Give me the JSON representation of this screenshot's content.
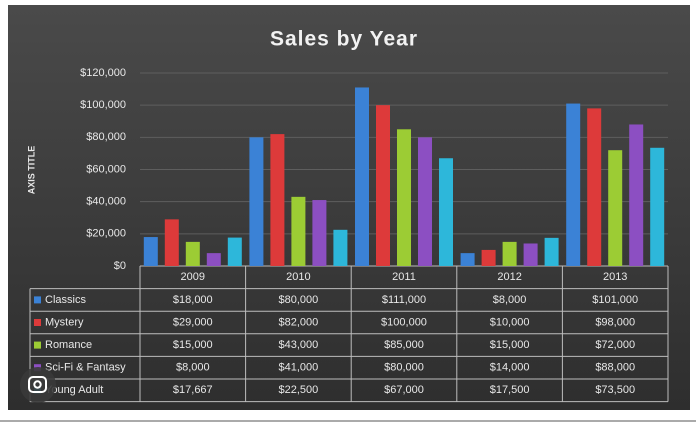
{
  "chart_data": {
    "type": "bar",
    "title": "Sales by Year",
    "y_label": "AXIS TITLE",
    "categories": [
      "2009",
      "2010",
      "2011",
      "2012",
      "2013"
    ],
    "series": [
      {
        "name": "Classics",
        "color": "#3b82d6",
        "values": [
          18000,
          80000,
          111000,
          8000,
          101000
        ],
        "value_labels": [
          "$18,000",
          "$80,000",
          "$111,000",
          "$8,000",
          "$101,000"
        ]
      },
      {
        "name": "Mystery",
        "color": "#dd3a3a",
        "values": [
          29000,
          82000,
          100000,
          10000,
          98000
        ],
        "value_labels": [
          "$29,000",
          "$82,000",
          "$100,000",
          "$10,000",
          "$98,000"
        ]
      },
      {
        "name": "Romance",
        "color": "#9ccc34",
        "values": [
          15000,
          43000,
          85000,
          15000,
          72000
        ],
        "value_labels": [
          "$15,000",
          "$43,000",
          "$85,000",
          "$15,000",
          "$72,000"
        ]
      },
      {
        "name": "Sci-Fi & Fantasy",
        "color": "#8c4fc2",
        "values": [
          8000,
          41000,
          80000,
          14000,
          88000
        ],
        "value_labels": [
          "$8,000",
          "$41,000",
          "$80,000",
          "$14,000",
          "$88,000"
        ]
      },
      {
        "name": "Young Adult",
        "color": "#2db7da",
        "values": [
          17667,
          22500,
          67000,
          17500,
          73500
        ],
        "value_labels": [
          "$17,667",
          "$22,500",
          "$67,000",
          "$17,500",
          "$73,500"
        ]
      }
    ],
    "ylim": [
      0,
      120000
    ],
    "yticks": [
      {
        "value": 0,
        "label": "$0"
      },
      {
        "value": 20000,
        "label": "$20,000"
      },
      {
        "value": 40000,
        "label": "$40,000"
      },
      {
        "value": 60000,
        "label": "$60,000"
      },
      {
        "value": 80000,
        "label": "$80,000"
      },
      {
        "value": 100000,
        "label": "$100,000"
      },
      {
        "value": 120000,
        "label": "$120,000"
      }
    ],
    "grid": true
  }
}
